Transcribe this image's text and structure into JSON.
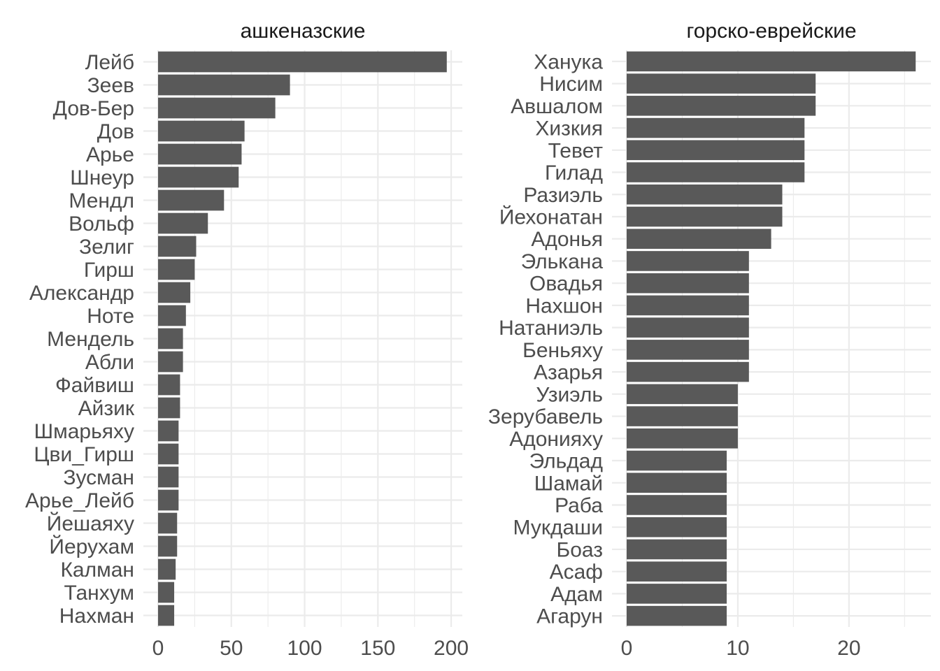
{
  "chart_data": [
    {
      "type": "bar",
      "orientation": "horizontal",
      "title": "ашкеназские",
      "xlabel": "",
      "ylabel": "",
      "xlim": [
        0,
        207
      ],
      "xticks": [
        0,
        50,
        100,
        150,
        200
      ],
      "grid": true,
      "categories": [
        "Лейб",
        "Зеев",
        "Дов-Бер",
        "Дов",
        "Арье",
        "Шнеур",
        "Мендл",
        "Вольф",
        "Зелиг",
        "Гирш",
        "Александр",
        "Ноте",
        "Мендель",
        "Абли",
        "Файвиш",
        "Айзик",
        "Шмарьяху",
        "Цви_Гирш",
        "Зусман",
        "Арье_Лейб",
        "Йешаяху",
        "Йерухам",
        "Калман",
        "Танхум",
        "Нахман"
      ],
      "values": [
        197,
        90,
        80,
        59,
        57,
        55,
        45,
        34,
        26,
        25,
        22,
        19,
        17,
        17,
        15,
        15,
        14,
        14,
        14,
        14,
        13,
        13,
        12,
        11,
        11
      ]
    },
    {
      "type": "bar",
      "orientation": "horizontal",
      "title": "горско-еврейские",
      "xlabel": "",
      "ylabel": "",
      "xlim": [
        0,
        27.3
      ],
      "xticks": [
        0,
        10,
        20
      ],
      "grid": true,
      "categories": [
        "Ханука",
        "Нисим",
        "Авшалом",
        "Хизкия",
        "Тевет",
        "Гилад",
        "Разиэль",
        "Йехонатан",
        "Адонья",
        "Элькана",
        "Овадья",
        "Нахшон",
        "Натаниэль",
        "Беньяху",
        "Азарья",
        "Узиэль",
        "Зерубавель",
        "Адонияху",
        "Эльдад",
        "Шамай",
        "Раба",
        "Мукдаши",
        "Боаз",
        "Асаф",
        "Адам",
        "Агарун"
      ],
      "values": [
        26,
        17,
        17,
        16,
        16,
        16,
        14,
        14,
        13,
        11,
        11,
        11,
        11,
        11,
        11,
        10,
        10,
        10,
        9,
        9,
        9,
        9,
        9,
        9,
        9,
        9
      ]
    }
  ],
  "colors": {
    "bar": "#595959",
    "grid": "#ebebeb",
    "label": "#4d4d4d",
    "strip": "#1a1a1a",
    "background": "#ffffff"
  }
}
